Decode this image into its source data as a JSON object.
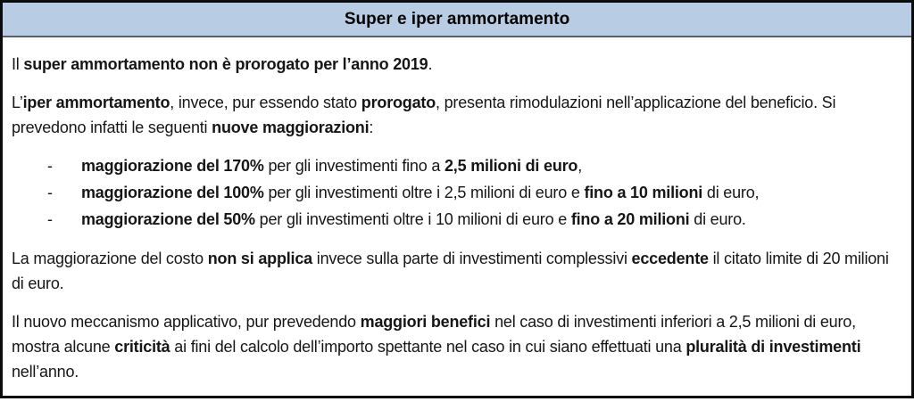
{
  "table": {
    "title": "Super e iper ammortamento",
    "bullet_marker": "-",
    "colors": {
      "header_bg": "#b8cce4",
      "border": "#0b0b0b",
      "header_divider": "#58606b",
      "text": "#161616"
    },
    "blocks": [
      {
        "type": "p",
        "segments": [
          {
            "t": "Il ",
            "b": false
          },
          {
            "t": "super ammortamento non è prorogato per l’anno 2019",
            "b": true
          },
          {
            "t": ".",
            "b": false
          }
        ]
      },
      {
        "type": "p",
        "segments": [
          {
            "t": "L’",
            "b": false
          },
          {
            "t": "iper ammortamento",
            "b": true
          },
          {
            "t": ", invece, pur essendo stato ",
            "b": false
          },
          {
            "t": "prorogato",
            "b": true
          },
          {
            "t": ", presenta rimodulazioni nell’applicazione del beneficio. Si prevedono infatti le seguenti ",
            "b": false
          },
          {
            "t": "nuove maggiorazioni",
            "b": true
          },
          {
            "t": ":",
            "b": false
          }
        ]
      },
      {
        "type": "li",
        "segments": [
          {
            "t": "maggiorazione del 170%",
            "b": true
          },
          {
            "t": " per gli investimenti fino a ",
            "b": false
          },
          {
            "t": "2,5 milioni di euro",
            "b": true
          },
          {
            "t": ",",
            "b": false
          }
        ]
      },
      {
        "type": "li",
        "segments": [
          {
            "t": "maggiorazione del 100%",
            "b": true
          },
          {
            "t": " per gli investimenti oltre i 2,5 milioni di euro e ",
            "b": false
          },
          {
            "t": "fino a 10 milioni",
            "b": true
          },
          {
            "t": " di euro,",
            "b": false
          }
        ]
      },
      {
        "type": "li",
        "segments": [
          {
            "t": "maggiorazione del 50%",
            "b": true
          },
          {
            "t": " per gli investimenti oltre i 10 milioni di euro e ",
            "b": false
          },
          {
            "t": "fino a 20 milioni",
            "b": true
          },
          {
            "t": " di euro.",
            "b": false
          }
        ]
      },
      {
        "type": "p",
        "segments": [
          {
            "t": "La maggiorazione del costo ",
            "b": false
          },
          {
            "t": "non si applica",
            "b": true
          },
          {
            "t": " invece sulla parte di investimenti complessivi ",
            "b": false
          },
          {
            "t": "eccedente",
            "b": true
          },
          {
            "t": " il citato limite di 20 milioni di euro.",
            "b": false
          }
        ]
      },
      {
        "type": "p",
        "segments": [
          {
            "t": "Il nuovo meccanismo applicativo, pur prevedendo ",
            "b": false
          },
          {
            "t": "maggiori benefici",
            "b": true
          },
          {
            "t": " nel caso di investimenti inferiori a 2,5 milioni di euro, mostra alcune ",
            "b": false
          },
          {
            "t": "criticità",
            "b": true
          },
          {
            "t": " ai fini del calcolo dell’importo spettante nel caso in cui siano effettuati una ",
            "b": false
          },
          {
            "t": "pluralità di investimenti",
            "b": true
          },
          {
            "t": " nell’anno.",
            "b": false
          }
        ]
      }
    ]
  }
}
